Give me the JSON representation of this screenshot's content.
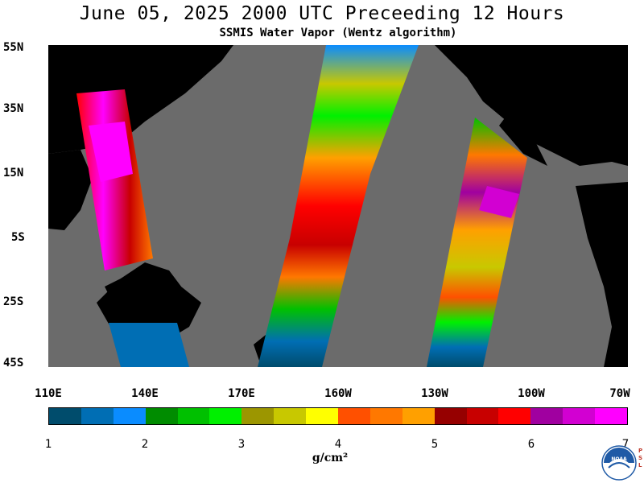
{
  "header": {
    "title": "June 05, 2025  2000 UTC  Preceeding 12 Hours",
    "subtitle": "SSMIS Water Vapor (Wentz algorithm)"
  },
  "map": {
    "lat_labels": [
      "55N",
      "35N",
      "15N",
      "5S",
      "25S",
      "45S"
    ],
    "lon_labels": [
      "110E",
      "140E",
      "170E",
      "160W",
      "130W",
      "100W",
      "70W"
    ],
    "land_color": "#000000",
    "no_data_color": "#6b6b6b"
  },
  "colorbar": {
    "tick_labels": [
      "1",
      "2",
      "3",
      "4",
      "5",
      "6",
      "7"
    ],
    "units_label": "g/cm²",
    "colors": [
      "#004c6c",
      "#006eb4",
      "#0a8cff",
      "#008c00",
      "#00c000",
      "#00f000",
      "#9c9600",
      "#c8c800",
      "#ffff00",
      "#ff5000",
      "#ff7800",
      "#ffa000",
      "#960000",
      "#c80000",
      "#ff0000",
      "#a000a0",
      "#d200d2",
      "#ff00ff"
    ]
  },
  "logo": {
    "name": "NOAA",
    "side_text": "PSL"
  }
}
